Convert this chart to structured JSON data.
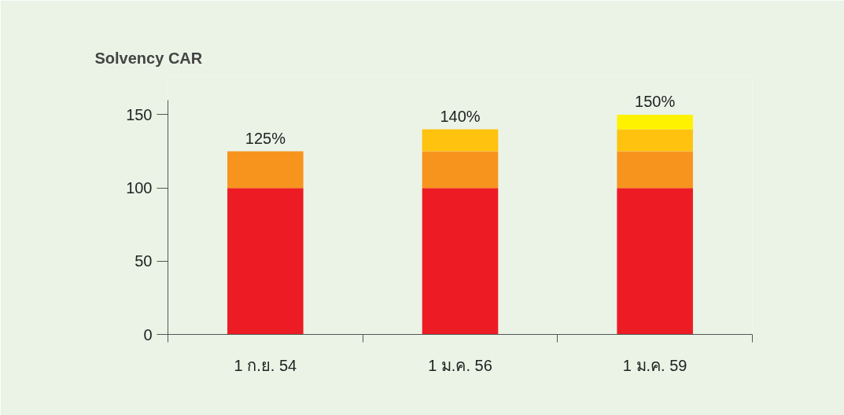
{
  "chart_data": {
    "type": "bar",
    "title": "Solvency CAR",
    "stacked": true,
    "categories": [
      "1 ก.ย. 54",
      "1 ม.ค. 56",
      "1 ม.ค. 59"
    ],
    "series": [
      {
        "color": "#ed1c24",
        "values": [
          100,
          100,
          100
        ]
      },
      {
        "color": "#f7941d",
        "values": [
          25,
          25,
          25
        ]
      },
      {
        "color": "#ffc20e",
        "values": [
          null,
          15,
          15
        ]
      },
      {
        "color": "#fff200",
        "values": [
          null,
          null,
          10
        ]
      }
    ],
    "totals": [
      "125%",
      "140%",
      "150%"
    ],
    "ylim": [
      0,
      160
    ],
    "yticks": [
      0,
      50,
      100,
      150
    ],
    "grid": false
  }
}
